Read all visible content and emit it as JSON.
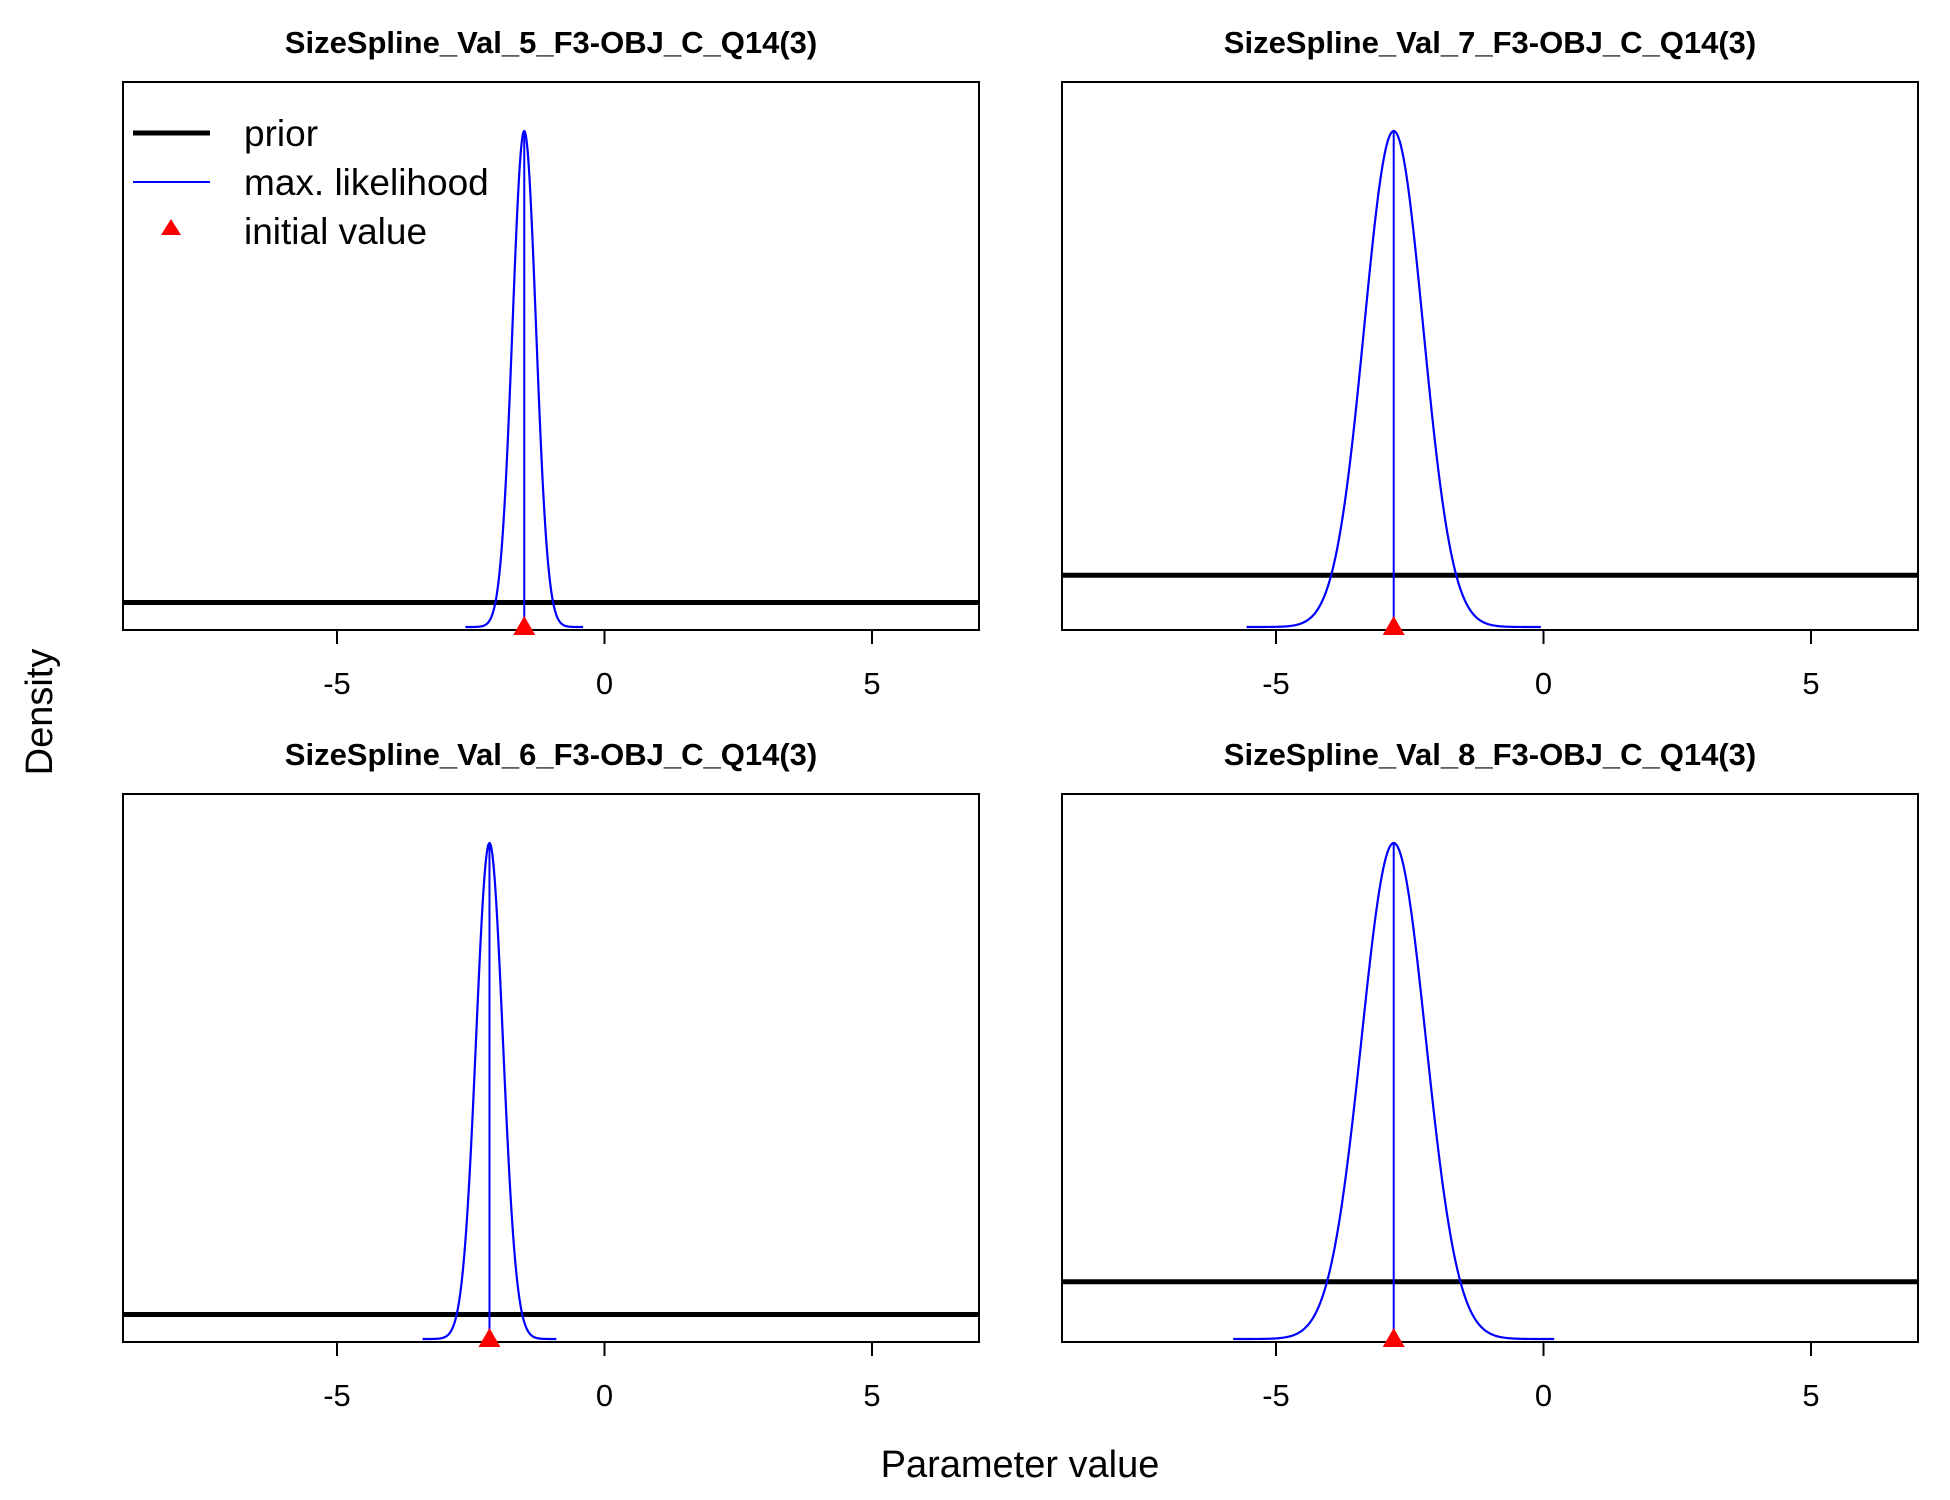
{
  "figure": {
    "xlabel": "Parameter value",
    "ylabel": "Density"
  },
  "legend": {
    "placement": "top-left of first panel",
    "entries": [
      {
        "label": "prior",
        "type": "line",
        "color": "#000000"
      },
      {
        "label": "max. likelihood",
        "type": "line",
        "color": "#0000ff"
      },
      {
        "label": "initial value",
        "type": "triangle",
        "color": "#ff0000"
      }
    ]
  },
  "colors": {
    "prior": "#000000",
    "max_likelihood": "#0000ff",
    "initial_value": "#ff0000",
    "frame": "#000000"
  },
  "chart_data": [
    {
      "type": "line",
      "title": "SizeSpline_Val_5_F3-OBJ_C_Q14(3)",
      "xlim": [
        -9,
        7
      ],
      "xticks": [
        -5,
        0,
        5
      ],
      "ylim_relative": [
        0,
        1
      ],
      "prior": {
        "distribution": "uniform",
        "relative_height": 0.045
      },
      "max_likelihood": {
        "mean": -1.5,
        "sd": 0.22,
        "relative_peak": 0.91
      },
      "initial_value": -1.5,
      "grid": false
    },
    {
      "type": "line",
      "title": "SizeSpline_Val_7_F3-OBJ_C_Q14(3)",
      "xlim": [
        -9,
        7
      ],
      "xticks": [
        -5,
        0,
        5
      ],
      "ylim_relative": [
        0,
        1
      ],
      "prior": {
        "distribution": "uniform",
        "relative_height": 0.095
      },
      "max_likelihood": {
        "mean": -2.8,
        "sd": 0.55,
        "relative_peak": 0.91
      },
      "initial_value": -2.8,
      "grid": false
    },
    {
      "type": "line",
      "title": "SizeSpline_Val_6_F3-OBJ_C_Q14(3)",
      "xlim": [
        -9,
        7
      ],
      "xticks": [
        -5,
        0,
        5
      ],
      "ylim_relative": [
        0,
        1
      ],
      "prior": {
        "distribution": "uniform",
        "relative_height": 0.045
      },
      "max_likelihood": {
        "mean": -2.15,
        "sd": 0.25,
        "relative_peak": 0.91
      },
      "initial_value": -2.15,
      "grid": false
    },
    {
      "type": "line",
      "title": "SizeSpline_Val_8_F3-OBJ_C_Q14(3)",
      "xlim": [
        -9,
        7
      ],
      "xticks": [
        -5,
        0,
        5
      ],
      "ylim_relative": [
        0,
        1
      ],
      "prior": {
        "distribution": "uniform",
        "relative_height": 0.105
      },
      "max_likelihood": {
        "mean": -2.8,
        "sd": 0.6,
        "relative_peak": 0.91
      },
      "initial_value": -2.8,
      "grid": false
    }
  ]
}
